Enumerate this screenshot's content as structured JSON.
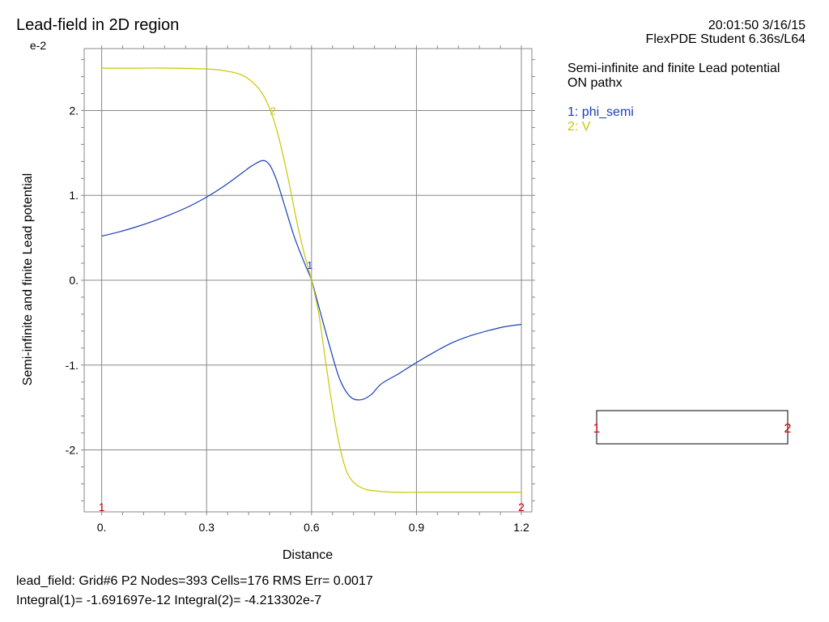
{
  "header": {
    "title": "Lead-field in 2D region",
    "timestamp": "20:01:50 3/16/15",
    "product": "FlexPDE Student 6.36s/L64"
  },
  "plot_info": {
    "line1": "Semi-infinite and finite Lead potential",
    "line2": "ON pathx"
  },
  "legend": [
    {
      "label": "1: phi_semi",
      "color": "#1a3fb5"
    },
    {
      "label": "2: V",
      "color": "#c8c800"
    }
  ],
  "footer": {
    "line1": "lead_field:  Grid#6  P2  Nodes=393  Cells=176  RMS Err= 0.0017",
    "line2": "Integral(1)= -1.691697e-12  Integral(2)= -4.213302e-7"
  },
  "path_box": {
    "start_label": "1",
    "end_label": "2",
    "label_color": "#cc0000"
  },
  "chart_data": {
    "type": "line",
    "title": "Semi-infinite and finite Lead potential",
    "xlabel": "Distance",
    "ylabel": "Semi-infinite and finite Lead potential",
    "y_exponent_label": "e-2",
    "xlim": [
      -0.05,
      1.23
    ],
    "ylim": [
      -2.73,
      2.73
    ],
    "x_ticks": [
      0,
      0.3,
      0.6,
      0.9,
      1.2
    ],
    "x_tick_labels": [
      "0.",
      "0.3",
      "0.6",
      "0.9",
      "1.2"
    ],
    "y_ticks": [
      -2,
      -1,
      0,
      1,
      2
    ],
    "y_tick_labels": [
      "-2.",
      "-1.",
      "0.",
      "1.",
      "2."
    ],
    "grid": true,
    "endpoint_markers": {
      "start": "1",
      "end": "2",
      "color": "#cc0000"
    },
    "series": [
      {
        "name": "phi_semi",
        "marker": "1",
        "color": "#1a3fb5",
        "x": [
          0,
          0.05,
          0.1,
          0.15,
          0.2,
          0.25,
          0.3,
          0.35,
          0.4,
          0.43,
          0.46,
          0.48,
          0.5,
          0.52,
          0.55,
          0.58,
          0.6,
          0.62,
          0.65,
          0.68,
          0.71,
          0.74,
          0.77,
          0.8,
          0.85,
          0.9,
          0.95,
          1.0,
          1.05,
          1.1,
          1.15,
          1.2
        ],
        "y": [
          0.52,
          0.57,
          0.63,
          0.7,
          0.78,
          0.87,
          0.98,
          1.11,
          1.26,
          1.35,
          1.41,
          1.36,
          1.18,
          0.92,
          0.52,
          0.2,
          0.0,
          -0.3,
          -0.75,
          -1.16,
          -1.37,
          -1.41,
          -1.35,
          -1.22,
          -1.1,
          -0.97,
          -0.85,
          -0.74,
          -0.66,
          -0.6,
          -0.55,
          -0.52
        ]
      },
      {
        "name": "V",
        "marker": "2",
        "color": "#c8c800",
        "x": [
          0,
          0.1,
          0.2,
          0.3,
          0.35,
          0.4,
          0.44,
          0.47,
          0.5,
          0.53,
          0.56,
          0.58,
          0.6,
          0.62,
          0.64,
          0.66,
          0.68,
          0.7,
          0.72,
          0.74,
          0.76,
          0.8,
          0.85,
          0.9,
          1.0,
          1.1,
          1.2
        ],
        "y": [
          2.5,
          2.5,
          2.5,
          2.49,
          2.47,
          2.42,
          2.3,
          2.12,
          1.78,
          1.26,
          0.65,
          0.3,
          0.0,
          -0.38,
          -0.95,
          -1.5,
          -1.95,
          -2.25,
          -2.38,
          -2.44,
          -2.47,
          -2.49,
          -2.5,
          -2.5,
          -2.5,
          -2.5,
          -2.5
        ]
      }
    ]
  }
}
